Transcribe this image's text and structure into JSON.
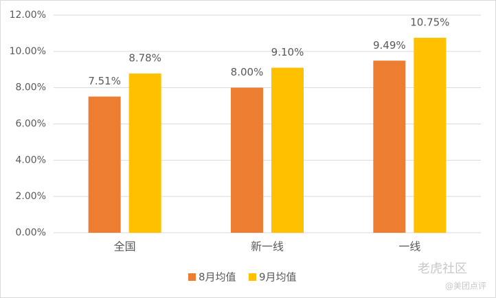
{
  "chart_data": {
    "type": "bar",
    "categories": [
      "全国",
      "新一线",
      "一线"
    ],
    "series": [
      {
        "name": "8月均值",
        "color": "#ed7d31",
        "values": [
          7.51,
          8.0,
          9.49
        ],
        "value_labels": [
          "7.51%",
          "8.00%",
          "9.49%"
        ]
      },
      {
        "name": "9月均值",
        "color": "#ffc000",
        "values": [
          8.78,
          9.1,
          10.75
        ],
        "value_labels": [
          "8.78%",
          "9.10%",
          "10.75%"
        ]
      }
    ],
    "ylim": [
      0,
      12
    ],
    "yticks": [
      {
        "value": 0,
        "label": "0.00%"
      },
      {
        "value": 2,
        "label": "2.00%"
      },
      {
        "value": 4,
        "label": "4.00%"
      },
      {
        "value": 6,
        "label": "6.00%"
      },
      {
        "value": 8,
        "label": "8.00%"
      },
      {
        "value": 10,
        "label": "10.00%"
      },
      {
        "value": 12,
        "label": "12.00%"
      }
    ],
    "grid": true,
    "legend": "bottom",
    "watermark": [
      "老虎社区",
      "@美团点评"
    ]
  }
}
